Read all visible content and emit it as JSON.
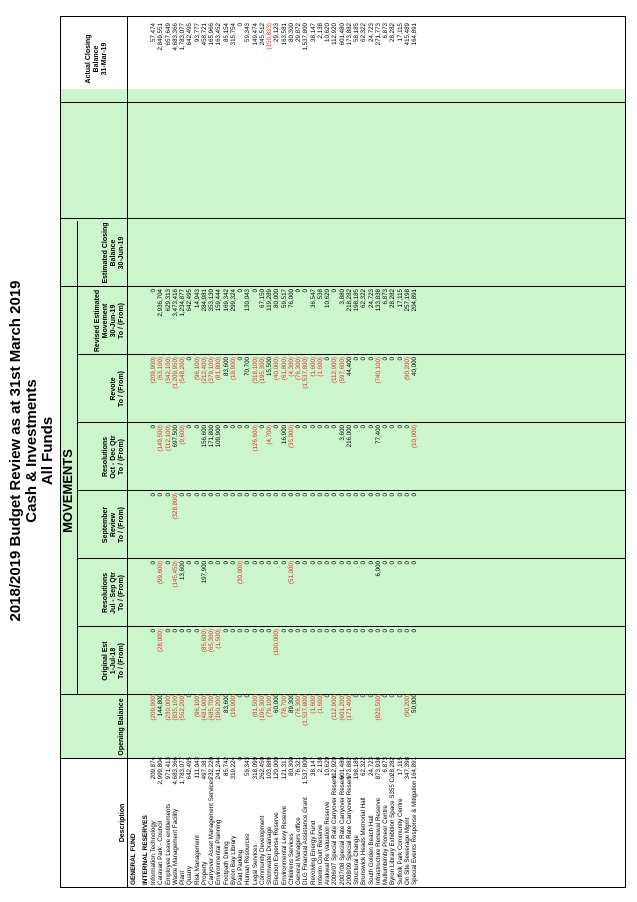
{
  "title": {
    "line1": "2018/2019 Budget Review as at 31st March 2019",
    "line2": "Cash & Investments",
    "line3": "All Funds"
  },
  "headers": {
    "description": "Description",
    "opening": "Opening Balance",
    "movements": "MOVEMENTS",
    "original_est": [
      "Original Est",
      "1-Jul-18",
      "To / (From)"
    ],
    "res_jul_sep": [
      "Resolutions",
      "Jul - Sep Qtr",
      "To / (From)"
    ],
    "sept_review": [
      "September",
      "Review",
      "To / (From)"
    ],
    "res_oct_dec": [
      "Resolutions",
      "Oct - Dec Qtr",
      "To / (From)"
    ],
    "revote": [
      "Revote",
      "To / (From)"
    ],
    "revised_est": [
      "Revised Estimated",
      "Movement",
      "30-Jun-19",
      "To / (From)"
    ],
    "est_closing": [
      "Estimated Closing",
      "Balance",
      "30-Jun-19"
    ],
    "actual_closing": [
      "Actual Closing",
      "Balance",
      "31-Mar-19"
    ]
  },
  "sections": {
    "fund": "GENERAL FUND",
    "reserves": "INTERNAL RESERVES"
  },
  "rows": [
    {
      "d": "Information Technology",
      "ob": "209,874",
      "oe": "(209,900)",
      "r1": "0",
      "sr": "0",
      "r2": "0",
      "rv": "0",
      "re": "(209,900)",
      "ec": "0",
      "ac": "57,474"
    },
    {
      "d": "Caravan Park - Council",
      "ob": "2,999,804",
      "oe": "144,800",
      "r1": "(28,000)",
      "sr": "(99,600)",
      "r2": "0",
      "rv": "(149,500)",
      "re": "(63,100)",
      "ec": "2,936,704",
      "ac": "2,849,551"
    },
    {
      "d": "Employee Leave entitlements",
      "ob": "971,413",
      "oe": "(230,000)",
      "r1": "0",
      "sr": "0",
      "r2": "0",
      "rv": "(112,100)",
      "re": "(342,100)",
      "ec": "629,313",
      "ac": "657,649"
    },
    {
      "d": "Waste Management Facility",
      "ob": "4,683,366",
      "oe": "(835,100)",
      "r1": "0",
      "sr": "(145,450)",
      "r2": "(328,800)",
      "rv": "697,500",
      "re": "(1,209,950)",
      "ec": "3,473,416",
      "ac": "4,683,366"
    },
    {
      "d": "Plant",
      "ob": "1,783,077",
      "oe": "(552,200)",
      "r1": "0",
      "sr": "13,600",
      "r2": "0",
      "rv": "(9,600)",
      "re": "(548,200)",
      "ec": "1,234,877",
      "ac": "1,783,077"
    },
    {
      "d": "Quarry",
      "ob": "642,495",
      "oe": "0",
      "r1": "0",
      "sr": "0",
      "r2": "0",
      "rv": "0",
      "re": "0",
      "ec": "642,495",
      "ac": "642,495"
    },
    {
      "d": "Risk Management",
      "ob": "111,043",
      "oe": "(96,100)",
      "r1": "0",
      "sr": "0",
      "r2": "0",
      "rv": "0",
      "re": "(96,100)",
      "ec": "14,943",
      "ac": "93,777"
    },
    {
      "d": "Property",
      "ob": "497,381",
      "oe": "(481,900)",
      "r1": "(85,600)",
      "sr": "197,900",
      "r2": "0",
      "rv": "156,600",
      "re": "(212,400)",
      "ec": "284,981",
      "ac": "458,721"
    },
    {
      "d": "Carryover Asset Management Services",
      "ob": "732,220",
      "oe": "(485,700)",
      "r1": "(65,300)",
      "sr": "0",
      "r2": "0",
      "rv": "171,800",
      "re": "(379,100)",
      "ec": "353,130",
      "ac": "165,966"
    },
    {
      "d": "Environmental Planning",
      "ob": "241,244",
      "oe": "(190,200)",
      "r1": "(1,500)",
      "sr": "0",
      "r2": "0",
      "rv": "109,900",
      "re": "(81,800)",
      "ec": "159,444",
      "ac": "163,452"
    },
    {
      "d": "Footpath Dining",
      "ob": "85,742",
      "oe": "83,600",
      "r1": "0",
      "sr": "0",
      "r2": "0",
      "rv": "0",
      "re": "83,600",
      "ec": "169,342",
      "ac": "85,154"
    },
    {
      "d": "Byron Bay Library",
      "ob": "319,224",
      "oe": "(19,900)",
      "r1": "0",
      "sr": "0",
      "r2": "0",
      "rv": "0",
      "re": "(19,900)",
      "ec": "299,324",
      "ac": "315,754"
    },
    {
      "d": "Paid Parking",
      "ob": "0",
      "oe": "0",
      "r1": "0",
      "sr": "(30,000)",
      "r2": "0",
      "rv": "0",
      "re": "0",
      "ec": "0",
      "ac": "0"
    },
    {
      "d": "Human Resources",
      "ob": "59,343",
      "oe": "0",
      "r1": "0",
      "sr": "0",
      "r2": "0",
      "rv": "0",
      "re": "70,700",
      "ec": "130,043",
      "ac": "59,343"
    },
    {
      "d": "Legal Services",
      "ob": "318,099",
      "oe": "(81,500)",
      "r1": "0",
      "sr": "0",
      "r2": "0",
      "rv": "(126,600)",
      "re": "(318,100)",
      "ec": "0",
      "ac": "149,474"
    },
    {
      "d": "Community Development",
      "ob": "262,450",
      "oe": "(195,300)",
      "r1": "0",
      "sr": "0",
      "r2": "0",
      "rv": "0",
      "re": "(195,300)",
      "ec": "67,150",
      "ac": "245,512"
    },
    {
      "d": "Stormwater Drainage",
      "ob": "103,889",
      "oe": "(79,100)",
      "r1": "0",
      "sr": "0",
      "r2": "0",
      "rv": "(4,700)",
      "re": "15,500",
      "ec": "119,289",
      "ac": "(159,833)"
    },
    {
      "d": "Election Expense Reserve",
      "ob": "120,000",
      "oe": "60,000",
      "r1": "(100,000)",
      "sr": "0",
      "r2": "0",
      "rv": "0",
      "re": "(40,000)",
      "ec": "80,000",
      "ac": "29,123"
    },
    {
      "d": "Environmental Levy Reserve",
      "ob": "121,317",
      "oe": "(78,700)",
      "r1": "0",
      "sr": "0",
      "r2": "0",
      "rv": "16,900",
      "re": "(61,800)",
      "ec": "59,517",
      "ac": "163,581"
    },
    {
      "d": "Childrens Services",
      "ob": "80,300",
      "oe": "89,300",
      "r1": "0",
      "sr": "(51,000)",
      "r2": "0",
      "rv": "(35,000)",
      "re": "(4,300)",
      "ec": "76,000",
      "ac": "80,300"
    },
    {
      "d": "General Managers office",
      "ob": "76,321",
      "oe": "(76,300)",
      "r1": "0",
      "sr": "0",
      "r2": "0",
      "rv": "0",
      "re": "(76,300)",
      "ec": "0",
      "ac": "29,872"
    },
    {
      "d": "DLG Financial Assistance Grant",
      "ob": "1,537,800",
      "oe": "(1,537,800)",
      "r1": "0",
      "sr": "0",
      "r2": "0",
      "rv": "0",
      "re": "(1,537,800)",
      "ec": "0",
      "ac": "1,537,800"
    },
    {
      "d": "Revolving Energy Fund",
      "ob": "38,147",
      "oe": "(1,600)",
      "r1": "0",
      "sr": "0",
      "r2": "0",
      "rv": "0",
      "re": "(1,600)",
      "ec": "36,547",
      "ac": "38,147"
    },
    {
      "d": "Interim Court Reserve",
      "ob": "2,138",
      "oe": "(1,600)",
      "r1": "0",
      "sr": "0",
      "r2": "0",
      "rv": "0",
      "re": "(1,600)",
      "ec": "538",
      "ac": "2,138"
    },
    {
      "d": "Arakwal Re Valuation Reserve",
      "ob": "10,620",
      "oe": "0",
      "r1": "0",
      "sr": "0",
      "r2": "0",
      "rv": "0",
      "re": "0",
      "ec": "10,620",
      "ac": "10,620"
    },
    {
      "d": "2006/07 Special Rate Carryover Reserve",
      "ob": "112,920",
      "oe": "(112,900)",
      "r1": "0",
      "sr": "0",
      "r2": "0",
      "rv": "0",
      "re": "(112,900)",
      "ec": "0",
      "ac": "112,920"
    },
    {
      "d": "2007/08 Special Rate Carryover Reserve",
      "ob": "601,480",
      "oe": "(601,200)",
      "r1": "0",
      "sr": "0",
      "r2": "0",
      "rv": "3,600",
      "re": "(597,600)",
      "ec": "3,880",
      "ac": "601,480"
    },
    {
      "d": "2008/09 Special Rate Carryover Reserve",
      "ob": "173,882",
      "oe": "(171,400)",
      "r1": "0",
      "sr": "0",
      "r2": "0",
      "rv": "216,000",
      "re": "44,400",
      "ec": "218,282",
      "ac": "173,882"
    },
    {
      "d": "Structural Change",
      "ob": "198,185",
      "oe": "0",
      "r1": "0",
      "sr": "0",
      "r2": "0",
      "rv": "0",
      "re": "0",
      "ec": "198,185",
      "ac": "58,185"
    },
    {
      "d": "Brunswick Heads Memorial Hall",
      "ob": "62,322",
      "oe": "0",
      "r1": "0",
      "sr": "0",
      "r2": "0",
      "rv": "0",
      "re": "0",
      "ec": "62,322",
      "ac": "62,322"
    },
    {
      "d": "South Golden Beach Hall",
      "ob": "24,723",
      "oe": "0",
      "r1": "0",
      "sr": "0",
      "r2": "0",
      "rv": "0",
      "re": "0",
      "ec": "24,723",
      "ac": "24,723"
    },
    {
      "d": "Infrastructure Renewal Reserve",
      "ob": "873,938",
      "oe": "(823,500)",
      "r1": "0",
      "sr": "6,000",
      "r2": "0",
      "rv": "77,400",
      "re": "(740,100)",
      "ec": "133,838",
      "ac": "271,773"
    },
    {
      "d": "Mullumbimby Pioneer Centre",
      "ob": "6,873",
      "oe": "0",
      "r1": "0",
      "sr": "0",
      "r2": "0",
      "rv": "0",
      "re": "0",
      "ec": "6,873",
      "ac": "6,873"
    },
    {
      "d": "Byron Library Exhibition Space S355 Committee",
      "ob": "28,282",
      "oe": "0",
      "r1": "0",
      "sr": "0",
      "r2": "0",
      "rv": "0",
      "re": "0",
      "ec": "28,282",
      "ac": "28,282"
    },
    {
      "d": "Suffolk Park Community Centre",
      "ob": "17,115",
      "oe": "0",
      "r1": "0",
      "sr": "0",
      "r2": "0",
      "rv": "0",
      "re": "0",
      "ec": "17,115",
      "ac": "17,115"
    },
    {
      "d": "On Site Sewerage Mgmt",
      "ob": "347,398",
      "oe": "(90,200)",
      "r1": "0",
      "sr": "0",
      "r2": "0",
      "rv": "0",
      "re": "(90,200)",
      "ec": "257,198",
      "ac": "415,489"
    },
    {
      "d": "Special Events Response & Mitigation",
      "ob": "164,891",
      "oe": "50,000",
      "r1": "0",
      "sr": "0",
      "r2": "0",
      "rv": "(10,000)",
      "re": "40,000",
      "ec": "204,891",
      "ac": "164,891"
    }
  ]
}
